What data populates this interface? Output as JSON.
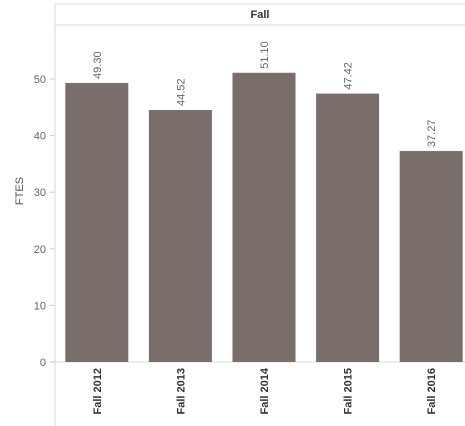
{
  "chart_data": {
    "type": "bar",
    "header": "Fall",
    "ylabel": "FTES",
    "xlabel": "",
    "categories": [
      "Fall 2012",
      "Fall 2013",
      "Fall 2014",
      "Fall 2015",
      "Fall 2016"
    ],
    "values": [
      49.3,
      44.52,
      51.1,
      47.42,
      37.27
    ],
    "value_labels": [
      "49.30",
      "44.52",
      "51.10",
      "47.42",
      "37.27"
    ],
    "ylim": [
      0,
      55
    ],
    "yticks": [
      0,
      10,
      20,
      30,
      40,
      50
    ],
    "grid": false,
    "bar_color": "#7a6e6a"
  }
}
